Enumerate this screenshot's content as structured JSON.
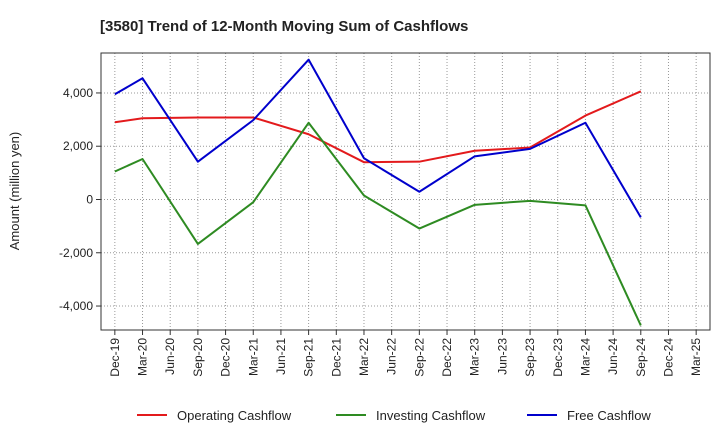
{
  "chart_data": {
    "type": "line",
    "title": "[3580]  Trend of 12-Month Moving Sum of Cashflows",
    "ylabel": "Amount (million yen)",
    "xlabel": "",
    "ylim": [
      -4900,
      5500
    ],
    "yticks": [
      -4000,
      -2000,
      0,
      2000,
      4000
    ],
    "ytick_labels": [
      "-4,000",
      "-2,000",
      "0",
      "2,000",
      "4,000"
    ],
    "categories": [
      "Dec-19",
      "Mar-20",
      "Jun-20",
      "Sep-20",
      "Dec-20",
      "Mar-21",
      "Jun-21",
      "Sep-21",
      "Dec-21",
      "Mar-22",
      "Jun-22",
      "Sep-22",
      "Dec-22",
      "Mar-23",
      "Jun-23",
      "Sep-23",
      "Dec-23",
      "Mar-24",
      "Jun-24",
      "Sep-24",
      "Dec-24",
      "Mar-25"
    ],
    "grid": true,
    "legend_position": "bottom",
    "series": [
      {
        "name": "Operating Cashflow",
        "color": "#e31a1c",
        "values": [
          2900,
          3050,
          null,
          3080,
          null,
          3080,
          null,
          2450,
          null,
          1400,
          null,
          1420,
          null,
          1830,
          null,
          1950,
          null,
          3150,
          null,
          4060,
          null,
          null
        ]
      },
      {
        "name": "Investing Cashflow",
        "color": "#2e8b22",
        "values": [
          1050,
          1520,
          null,
          -1670,
          null,
          -100,
          null,
          2880,
          null,
          150,
          null,
          -1090,
          null,
          -200,
          null,
          -50,
          null,
          -220,
          null,
          -4730,
          null,
          null
        ]
      },
      {
        "name": "Free Cashflow",
        "color": "#0000cc",
        "values": [
          3950,
          4550,
          null,
          1420,
          null,
          2980,
          null,
          5250,
          null,
          1550,
          null,
          290,
          null,
          1620,
          null,
          1900,
          null,
          2880,
          null,
          -670,
          null,
          null
        ]
      }
    ]
  }
}
